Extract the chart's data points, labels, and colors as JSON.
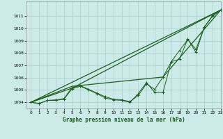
{
  "xlabel": "Graphe pression niveau de la mer (hPa)",
  "xlim": [
    -0.5,
    23
  ],
  "ylim": [
    1003.5,
    1012.2
  ],
  "yticks": [
    1004,
    1005,
    1006,
    1007,
    1008,
    1009,
    1010,
    1011
  ],
  "xticks": [
    0,
    1,
    2,
    3,
    4,
    5,
    6,
    7,
    8,
    9,
    10,
    11,
    12,
    13,
    14,
    15,
    16,
    17,
    18,
    19,
    20,
    21,
    22,
    23
  ],
  "background_color": "#cceae8",
  "grid_color": "#aacfcf",
  "line_color": "#1a5e1a",
  "series_jagged1": [
    1004.0,
    1003.9,
    1004.15,
    1004.15,
    1004.25,
    1005.1,
    1005.3,
    1005.0,
    1004.7,
    1004.35,
    1004.2,
    1004.15,
    1004.0,
    1004.7,
    1005.6,
    1004.8,
    1004.8,
    1007.3,
    1008.2,
    1009.1,
    1008.3,
    1010.1,
    1011.0,
    1011.5
  ],
  "series_jagged2": [
    1004.0,
    1003.9,
    1004.15,
    1004.2,
    1004.3,
    1005.2,
    1005.35,
    1005.05,
    1004.75,
    1004.45,
    1004.25,
    1004.2,
    1004.05,
    1004.55,
    1005.5,
    1005.05,
    1006.05,
    1007.3,
    1007.5,
    1009.15,
    1008.05,
    1010.1,
    1011.05,
    1011.5
  ],
  "line1_x": [
    0,
    23
  ],
  "line1_y": [
    1004.0,
    1011.5
  ],
  "line2_x": [
    0,
    5,
    23
  ],
  "line2_y": [
    1004.0,
    1005.15,
    1011.5
  ],
  "line3_x": [
    0,
    5,
    16,
    23
  ],
  "line3_y": [
    1004.0,
    1005.3,
    1006.05,
    1011.5
  ]
}
